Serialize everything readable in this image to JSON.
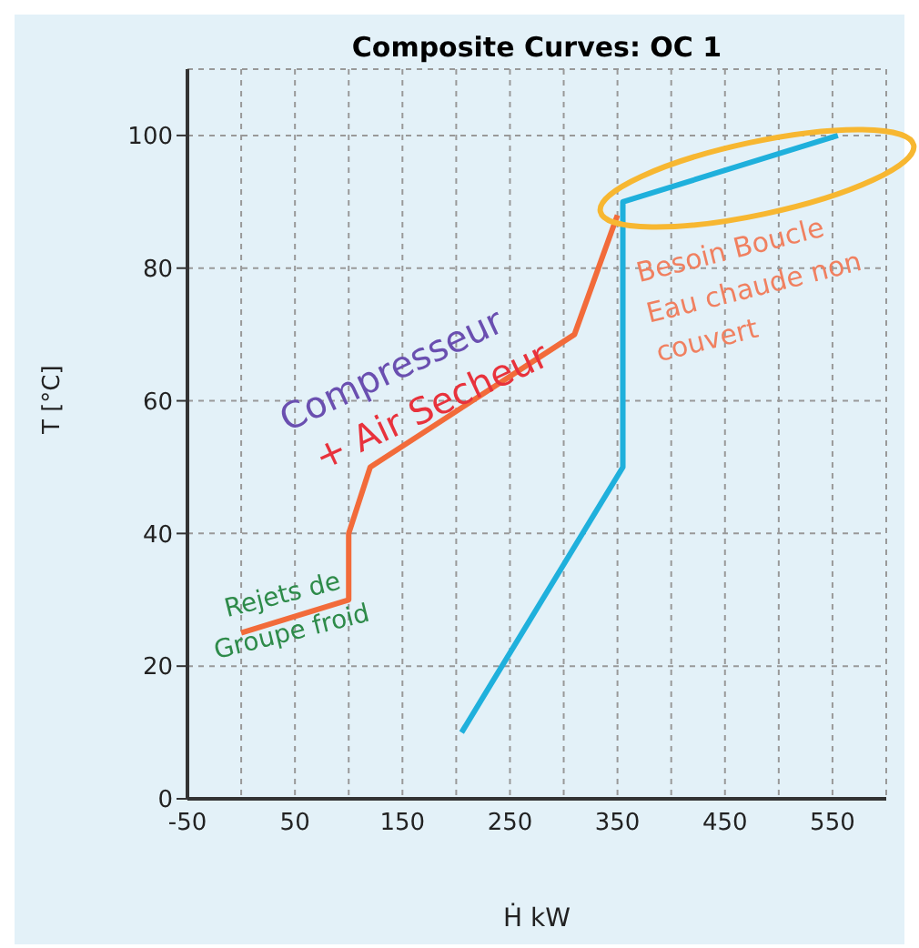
{
  "chart_data": {
    "type": "line",
    "title": "Composite Curves: OC 1",
    "xlabel": "Ḣ kW",
    "ylabel": "T [°C]",
    "annotations": [
      "Compresseur",
      "+ Air Secheur",
      "Besoin Boucle Eau chaude non couvert",
      "Rejets de Groupe froid"
    ],
    "series": [
      {
        "color": "#f26b3a",
        "x": [
          0,
          100,
          100,
          120,
          310,
          350
        ],
        "values": [
          25,
          30,
          40,
          50,
          70,
          88
        ]
      },
      {
        "color": "#1fb0dc",
        "x": [
          205,
          355,
          355,
          555
        ],
        "values": [
          10,
          50,
          90,
          100
        ]
      }
    ],
    "xlim": [
      -50,
      600
    ],
    "xticks": [
      -50,
      {
        "value": 0,
        "label": null
      },
      50,
      {
        "value": 100,
        "label": null
      },
      150,
      {
        "value": 200,
        "label": null
      },
      250,
      {
        "value": 300,
        "label": null
      },
      350,
      {
        "value": 400,
        "label": null
      },
      450,
      {
        "value": 500,
        "label": null
      },
      550
    ],
    "ylim": [
      0,
      110
    ],
    "yticks": [
      0,
      20,
      40,
      60,
      80,
      100
    ],
    "grid": true,
    "legend": false,
    "marker": "none",
    "line_style": "solid"
  }
}
